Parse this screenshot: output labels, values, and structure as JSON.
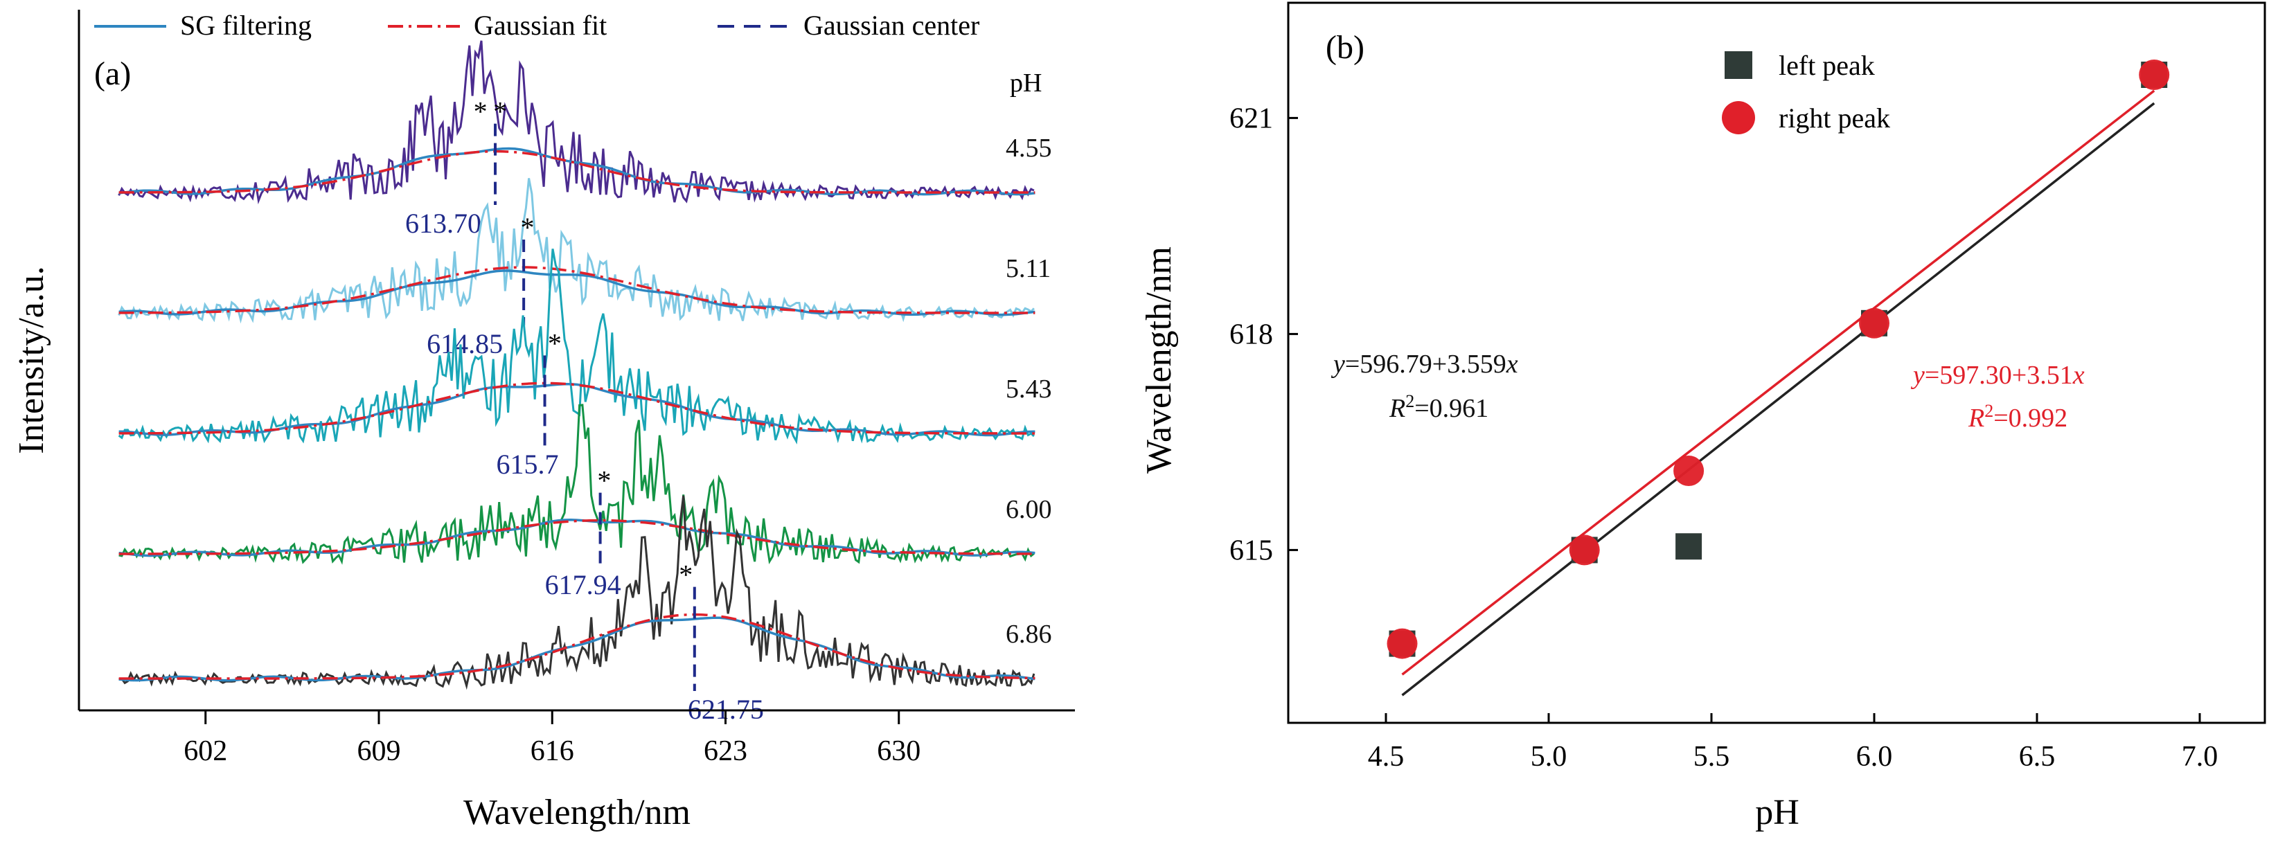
{
  "chart_data": [
    {
      "panel_label": "(a)",
      "type": "line",
      "xlabel": "Wavelength/nm",
      "ylabel": "Intensity/a.u.",
      "xlim": [
        597,
        637
      ],
      "xticks": [
        602,
        609,
        616,
        623,
        630
      ],
      "offset_title": "pH",
      "legend": {
        "placement": "top",
        "entries": [
          {
            "label": "SG filtering",
            "style": "solid",
            "color": "#2e86c1"
          },
          {
            "label": "Gaussian fit",
            "style": "dashdot",
            "color": "#e0202a"
          },
          {
            "label": "Gaussian center",
            "style": "dashed",
            "color": "#1f2a8a"
          }
        ]
      },
      "colors": {
        "sg": "#2e86c1",
        "fit": "#e0202a",
        "center": "#1f2a8a"
      },
      "series": [
        {
          "name": "4.55",
          "raw_color": "#4b2c8f",
          "center": 613.7,
          "center_label": "613.70",
          "peak_markers": [
            "*",
            "*"
          ],
          "peak_positions": [
            613.1,
            613.9
          ],
          "sigma": 4.0,
          "fit_amp": 0.27,
          "sg_amp": 0.28,
          "noise": 0.1,
          "spikes": [
            [
              610.8,
              0.35
            ],
            [
              612.6,
              0.55
            ],
            [
              613.3,
              0.45
            ],
            [
              614.3,
              0.42
            ],
            [
              615.0,
              0.3
            ]
          ]
        },
        {
          "name": "5.11",
          "raw_color": "#7ec8e3",
          "center": 614.85,
          "center_label": "614.85",
          "peak_markers": [
            "*"
          ],
          "peak_positions": [
            615.0
          ],
          "sigma": 4.6,
          "fit_amp": 0.3,
          "sg_amp": 0.27,
          "noise": 0.09,
          "spikes": [
            [
              615.0,
              0.55
            ],
            [
              613.5,
              0.3
            ],
            [
              616.6,
              0.28
            ]
          ]
        },
        {
          "name": "5.43",
          "raw_color": "#1aa6b7",
          "center": 615.7,
          "center_label": "615.7",
          "peak_markers": [
            "*"
          ],
          "peak_positions": [
            616.1
          ],
          "sigma": 4.8,
          "fit_amp": 0.33,
          "sg_amp": 0.32,
          "noise": 0.1,
          "spikes": [
            [
              616.1,
              0.75
            ],
            [
              614.8,
              0.5
            ],
            [
              618.0,
              0.42
            ],
            [
              611.9,
              0.32
            ]
          ]
        },
        {
          "name": "6.00",
          "raw_color": "#149446",
          "center": 617.94,
          "center_label": "617.94",
          "peak_markers": [
            "*"
          ],
          "peak_positions": [
            618.1
          ],
          "sigma": 4.9,
          "fit_amp": 0.22,
          "sg_amp": 0.22,
          "noise": 0.09,
          "spikes": [
            [
              617.2,
              0.7
            ],
            [
              619.5,
              0.45
            ],
            [
              620.5,
              0.42
            ],
            [
              622.6,
              0.3
            ]
          ]
        },
        {
          "name": "6.86",
          "raw_color": "#333333",
          "center": 621.75,
          "center_label": "621.75",
          "peak_markers": [
            "*"
          ],
          "peak_positions": [
            621.4
          ],
          "sigma": 4.3,
          "fit_amp": 0.42,
          "sg_amp": 0.4,
          "noise": 0.1,
          "spikes": [
            [
              621.4,
              0.6
            ],
            [
              622.2,
              0.5
            ],
            [
              619.6,
              0.45
            ],
            [
              623.5,
              0.4
            ]
          ]
        }
      ]
    },
    {
      "panel_label": "(b)",
      "type": "scatter",
      "xlabel": "pH",
      "ylabel": "Wavelength/nm",
      "xlim": [
        4.2,
        7.2
      ],
      "ylim": [
        612.6,
        622.6
      ],
      "xticks": [
        4.5,
        5.0,
        5.5,
        6.0,
        6.5,
        7.0
      ],
      "xtick_labels": [
        "4.5",
        "5.0",
        "5.5",
        "6.0",
        "6.5",
        "7.0"
      ],
      "yticks": [
        615,
        618,
        621
      ],
      "legend": {
        "placement": "top-center"
      },
      "series": [
        {
          "name": "left peak",
          "marker": "square",
          "color": "#2f3b37",
          "x": [
            4.55,
            5.11,
            5.43,
            6.0,
            6.86
          ],
          "y": [
            613.7,
            615.0,
            615.05,
            618.15,
            621.6
          ]
        },
        {
          "name": "right peak",
          "marker": "circle",
          "color": "#e0202a",
          "x": [
            4.55,
            5.11,
            5.43,
            6.0,
            6.86
          ],
          "y": [
            613.7,
            615.0,
            616.1,
            618.15,
            621.6
          ]
        }
      ],
      "fits": [
        {
          "series": "left peak",
          "intercept": 596.79,
          "slope": 3.559,
          "color": "#222222",
          "equation": {
            "y": "y",
            "body": "=596.79+3.559",
            "x": "x"
          },
          "r2": {
            "r": "R",
            "sup": "2",
            "value": "=0.961"
          }
        },
        {
          "series": "right peak",
          "intercept": 597.3,
          "slope": 3.51,
          "color": "#e0202a",
          "equation": {
            "y": "y",
            "body": "=597.30+3.51",
            "x": "x"
          },
          "r2": {
            "r": "R",
            "sup": "2",
            "value": "=0.992"
          }
        }
      ]
    }
  ]
}
